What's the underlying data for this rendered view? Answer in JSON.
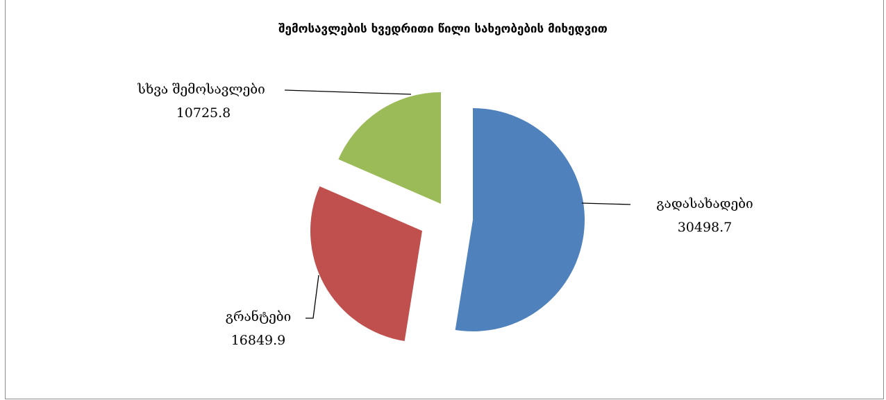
{
  "chart_data": {
    "type": "pie",
    "title": "შემოსავლების ხვედრითი წილი სახეობების მიხედვით",
    "slices": [
      {
        "name": "გადასახადები",
        "value": 30498.7,
        "label": "30498.7",
        "color": "#4f81bd"
      },
      {
        "name": "გრანტები",
        "value": 16849.9,
        "label": "16849.9",
        "color": "#c0504d"
      },
      {
        "name": "სხვა შემოსავლები",
        "value": 10725.8,
        "label": "10725.8",
        "color": "#9bbb59"
      }
    ],
    "legend": "none",
    "data_labels": "outside with leader lines"
  }
}
